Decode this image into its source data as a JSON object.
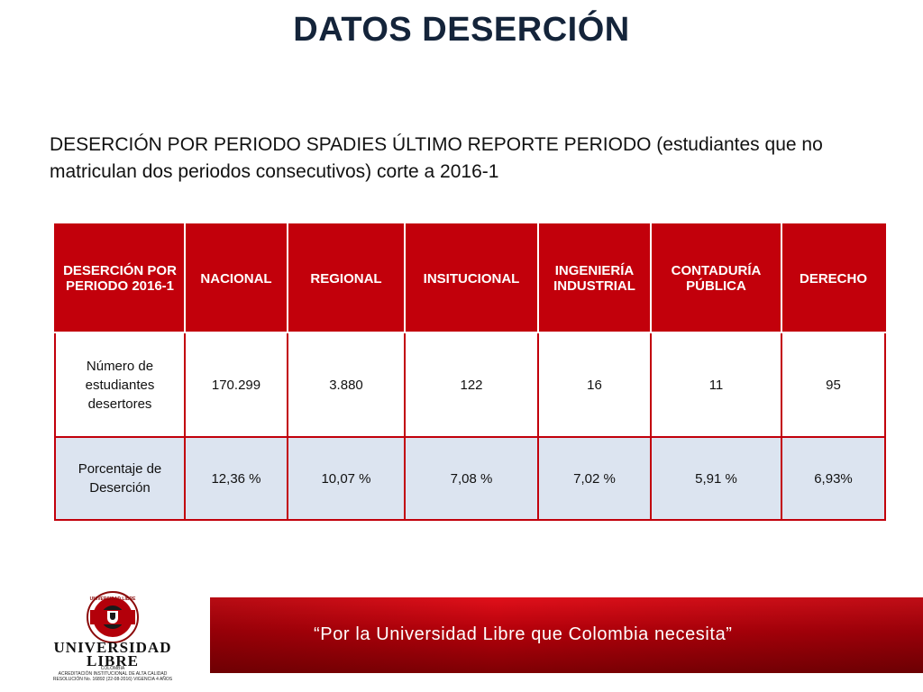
{
  "slide": {
    "title": "DATOS DESERCIÓN",
    "subtitle": "DESERCIÓN POR PERIODO SPADIES ÚLTIMO REPORTE PERIODO (estudiantes que no matriculan dos periodos consecutivos) corte a 2016-1"
  },
  "table": {
    "headers": [
      "DESERCIÓN POR PERIODO 2016-1",
      "NACIONAL",
      "REGIONAL",
      "INSITUCIONAL",
      "INGENIERÍA INDUSTRIAL",
      "CONTADURÍA PÚBLICA",
      "DERECHO"
    ],
    "rows": [
      [
        "Número de estudiantes desertores",
        "170.299",
        "3.880",
        "122",
        "16",
        "11",
        "95"
      ],
      [
        "Porcentaje de Deserción",
        "12,36 %",
        "10,07 %",
        "7,08 %",
        "7,02 %",
        "5,91 %",
        "6,93%"
      ]
    ]
  },
  "footer": {
    "logo_seal_text": "UNIVERSIDAD LIBRE",
    "logo_name_line1": "UNIVERSIDAD",
    "logo_name_line2": "LIBRE",
    "logo_country": "COLOMBIA",
    "accreditation_line1": "ACREDITACIÓN INSTITUCIONAL DE ALTA CALIDAD",
    "accreditation_line2": "RESOLUCIÓN No. 16892 (22-08-2016) VIGENCIA 4 AÑOS",
    "slogan": "“Por la Universidad Libre que Colombia necesita”"
  },
  "colors": {
    "header_red": "#c2000b",
    "title_navy": "#14243a",
    "alt_row_blue": "#dce4f0"
  }
}
